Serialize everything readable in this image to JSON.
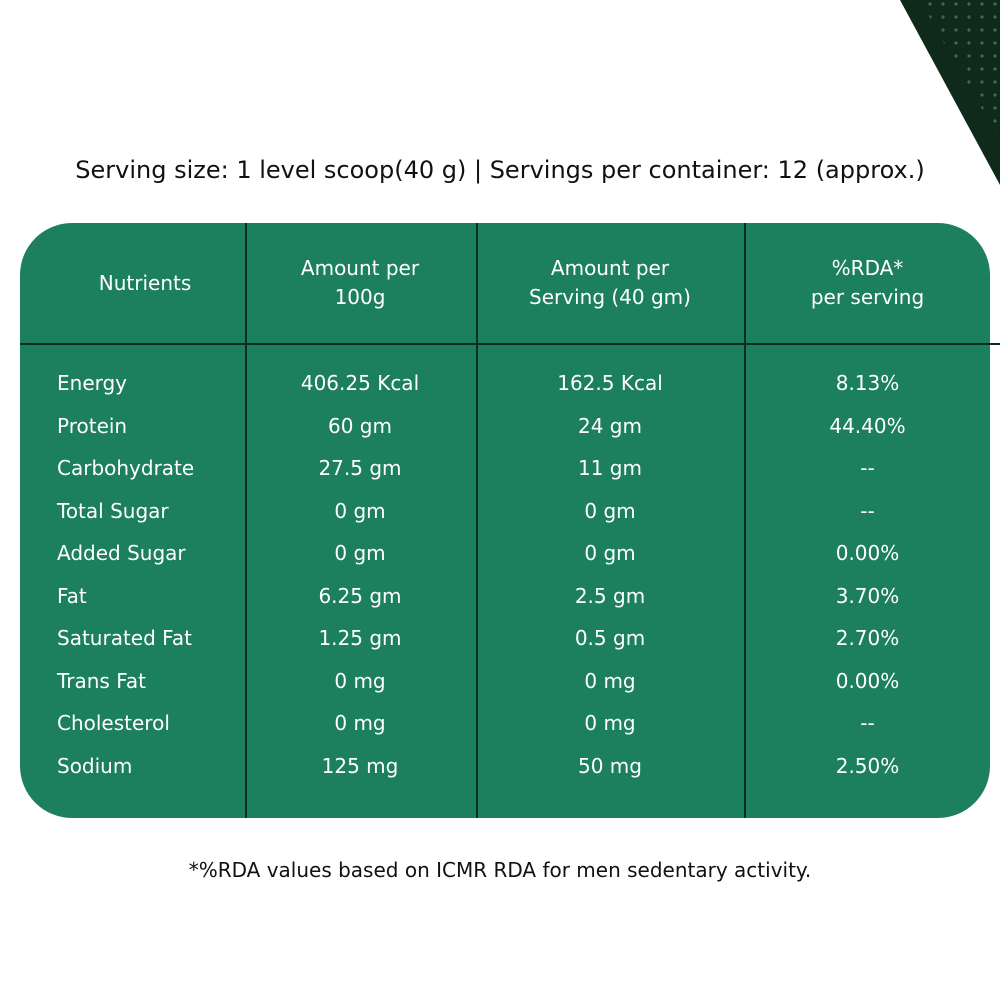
{
  "serving_info": "Serving size: 1 level scoop(40 g) | Servings per container: 12 (approx.)",
  "table": {
    "headers": [
      [
        "Nutrients"
      ],
      [
        "Amount per",
        "100g"
      ],
      [
        "Amount per",
        "Serving (40 gm)"
      ],
      [
        "%RDA*",
        "per serving"
      ]
    ],
    "rows": [
      [
        "Energy",
        "406.25 Kcal",
        "162.5 Kcal",
        "8.13%"
      ],
      [
        "Protein",
        "60 gm",
        "24 gm",
        "44.40%"
      ],
      [
        "Carbohydrate",
        "27.5 gm",
        "11 gm",
        "--"
      ],
      [
        "Total Sugar",
        "0 gm",
        "0 gm",
        "--"
      ],
      [
        "Added Sugar",
        "0 gm",
        "0 gm",
        "0.00%"
      ],
      [
        "Fat",
        "6.25 gm",
        "2.5 gm",
        "3.70%"
      ],
      [
        "Saturated Fat",
        "1.25 gm",
        "0.5 gm",
        "2.70%"
      ],
      [
        "Trans Fat",
        "0 mg",
        "0 mg",
        "0.00%"
      ],
      [
        "Cholesterol",
        "0 mg",
        "0 mg",
        "--"
      ],
      [
        "Sodium",
        "125 mg",
        "50 mg",
        "2.50%"
      ]
    ]
  },
  "footnote": "*%RDA values based on ICMR RDA for men sedentary activity.",
  "colors": {
    "panel": "#1c7f5e",
    "divider": "#0c2e22",
    "text_on_panel": "#ffffff",
    "text": "#111111"
  }
}
